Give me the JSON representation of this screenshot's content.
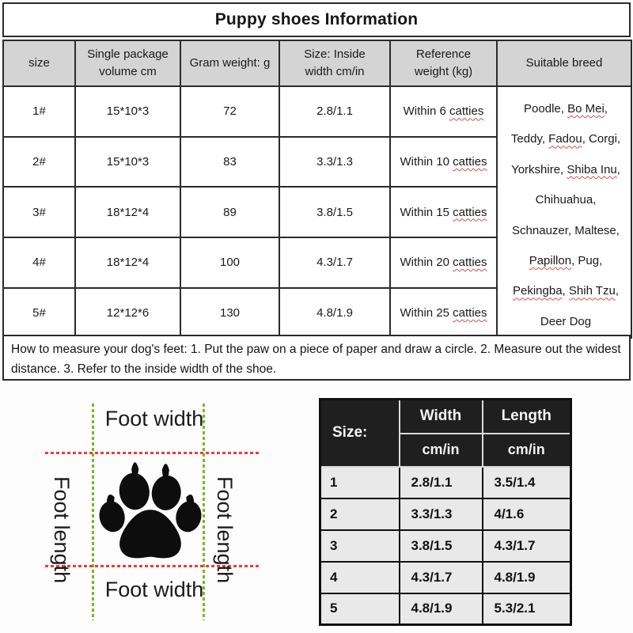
{
  "title": "Puppy shoes Information",
  "colors": {
    "header_bg": "#d4d4d4",
    "dark_header_bg": "#1f1f1f",
    "chart_row_bg": "#e9e9e9",
    "border": "#2b2b2b",
    "measure_line_horizontal": "#ef3b36",
    "measure_line_vertical": "#76b82a",
    "wavy_underline": "#c9524a",
    "paw_fill": "#0d0d0d"
  },
  "main_table": {
    "headers": {
      "size": "size",
      "volume": "Single package\nvolume cm",
      "gram": "Gram weight: g",
      "inside_width": "Size: Inside\nwidth cm/in",
      "weight": "Reference\nweight (kg)",
      "breed": "Suitable breed"
    },
    "rows": [
      {
        "size": "1#",
        "volume": "15*10*3",
        "gram_weight": "72",
        "weight_segments": [
          {
            "t": "Within 6 "
          },
          {
            "t": "catties",
            "u": true
          }
        ],
        "inside_width": "2.8/1.1"
      },
      {
        "size": "2#",
        "volume": "15*10*3",
        "gram_weight": "83",
        "weight_segments": [
          {
            "t": "Within 10 "
          },
          {
            "t": "catties",
            "u": true
          }
        ],
        "inside_width": "3.3/1.3"
      },
      {
        "size": "3#",
        "volume": "18*12*4",
        "gram_weight": "89",
        "weight_segments": [
          {
            "t": "Within 15 "
          },
          {
            "t": "catties",
            "u": true
          }
        ],
        "inside_width": "3.8/1.5"
      },
      {
        "size": "4#",
        "volume": "18*12*4",
        "gram_weight": "100",
        "weight_segments": [
          {
            "t": "Within 20 "
          },
          {
            "t": "catties",
            "u": true
          }
        ],
        "inside_width": "4.3/1.7"
      },
      {
        "size": "5#",
        "volume": "12*12*6",
        "gram_weight": "130",
        "weight_segments": [
          {
            "t": "Within 25 "
          },
          {
            "t": "catties",
            "u": true
          }
        ],
        "inside_width": "4.8/1.9"
      }
    ],
    "breed_lines": [
      [
        {
          "t": "Poodle, "
        },
        {
          "t": "Bo Mei",
          "u": true
        },
        {
          "t": ","
        }
      ],
      [
        {
          "t": "Teddy, "
        },
        {
          "t": "Fadou",
          "u": true
        },
        {
          "t": ", Corgi,"
        }
      ],
      [
        {
          "t": "Yorkshire, "
        },
        {
          "t": "Shiba Inu",
          "u": true
        },
        {
          "t": ","
        }
      ],
      [
        {
          "t": "Chihuahua,"
        }
      ],
      [
        {
          "t": "Schnauzer, Maltese,"
        }
      ],
      [
        {
          "t": "Papillon",
          "u": true
        },
        {
          "t": ", Pug,"
        }
      ],
      [
        {
          "t": "Pekingba",
          "u": true
        },
        {
          "t": ", "
        },
        {
          "t": "Shih Tzu",
          "u": true
        },
        {
          "t": ","
        }
      ],
      [
        {
          "t": "Deer Dog"
        }
      ]
    ]
  },
  "note": "How to measure your dog's feet: 1. Put the paw on a piece of paper and draw a circle. 2. Measure out the widest distance. 3. Refer to the inside width of the shoe.",
  "diagram": {
    "top_label": "Foot width",
    "bottom_label": "Foot width",
    "left_label": "Foot length",
    "right_label": "Foot length",
    "paw_icon": "paw-print"
  },
  "size_chart": {
    "corner_header": "Size:",
    "columns": [
      {
        "label": "Width",
        "unit": "cm/in"
      },
      {
        "label": "Length",
        "unit": "cm/in"
      }
    ],
    "rows": [
      {
        "size": "1",
        "width": "2.8/1.1",
        "length": "3.5/1.4"
      },
      {
        "size": "2",
        "width": "3.3/1.3",
        "length": "4/1.6"
      },
      {
        "size": "3",
        "width": "3.8/1.5",
        "length": "4.3/1.7"
      },
      {
        "size": "4",
        "width": "4.3/1.7",
        "length": "4.8/1.9"
      },
      {
        "size": "5",
        "width": "4.8/1.9",
        "length": "5.3/2.1"
      }
    ]
  }
}
